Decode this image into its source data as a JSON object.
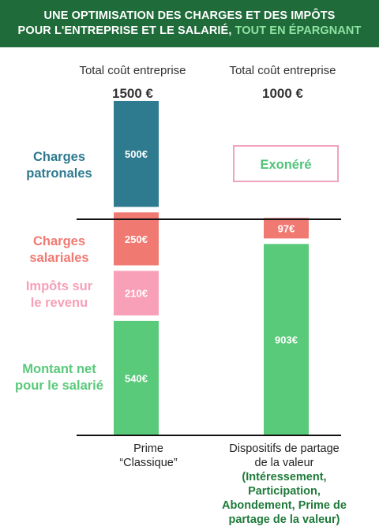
{
  "header": {
    "line1": "UNE OPTIMISATION DES CHARGES ET DES IMPÔTS",
    "line2_prefix": "POUR L'ENTREPRISE ET LE SALARIÉ, ",
    "line2_accent": "TOUT EN ÉPARGNANT"
  },
  "columns": [
    {
      "subtitle": "Total coût entreprise",
      "total": "1500 €"
    },
    {
      "subtitle": "Total coût entreprise",
      "total": "1000 €"
    }
  ],
  "rows": {
    "charges_patronales": {
      "line1": "Charges",
      "line2": "patronales"
    },
    "charges_salariales": {
      "line1": "Charges",
      "line2": "salariales"
    },
    "impots": {
      "line1": "Impôts sur",
      "line2": "le revenu"
    },
    "montant_net": {
      "line1": "Montant net",
      "line2": "pour le salarié"
    }
  },
  "xaxis": {
    "bar1_line1": "Prime",
    "bar1_line2": "“Classique”",
    "bar2_line1": "Dispositifs de partage",
    "bar2_line2": "de la valeur",
    "bar2_detail1": "(Intéressement,",
    "bar2_detail2": "Participation,",
    "bar2_detail3": "Abondement, Prime de",
    "bar2_detail4": "partage de la valeur)"
  },
  "colors": {
    "header_bg": "#1f6b3a",
    "header_accent": "#8ee3a2",
    "charges_patronales": "#2e7a8f",
    "charges_salariales": "#f07a72",
    "impots": "#f7a0b8",
    "montant_net": "#59c97a",
    "exonere_border": "#f2a3bd",
    "exonere_text": "#52c47a",
    "axis_line": "#111111"
  },
  "chart_data": {
    "type": "bar",
    "stacked": true,
    "categories": [
      "Prime “Classique”",
      "Dispositifs de partage de la valeur"
    ],
    "series": [
      {
        "name": "Montant net pour le salarié",
        "values": [
          540,
          903
        ],
        "labels": [
          "540€",
          "903€"
        ]
      },
      {
        "name": "Impôts sur le revenu",
        "values": [
          210,
          0
        ],
        "labels": [
          "210€",
          ""
        ]
      },
      {
        "name": "Charges salariales",
        "values": [
          250,
          97
        ],
        "labels": [
          "250€",
          "97€"
        ]
      },
      {
        "name": "Charges patronales",
        "values": [
          500,
          0
        ],
        "labels": [
          "500€",
          ""
        ]
      }
    ],
    "annotations": [
      {
        "category_index": 1,
        "series": "Charges patronales",
        "text": "Exonéré"
      }
    ],
    "totals": [
      1500,
      1000
    ]
  }
}
